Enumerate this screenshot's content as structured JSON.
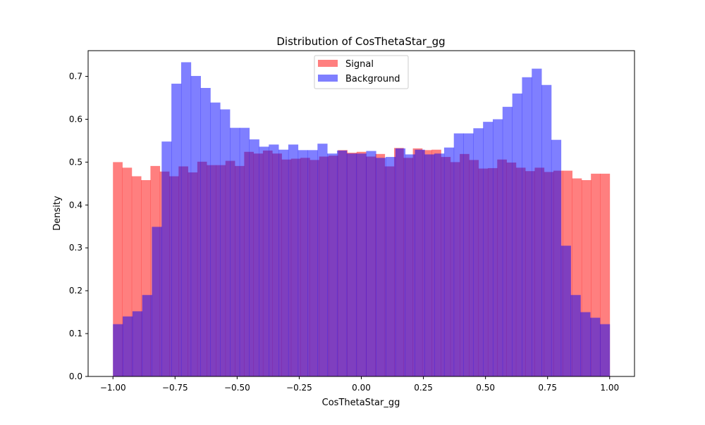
{
  "chart_data": {
    "type": "histogram",
    "title": "Distribution of CosThetaStar_gg",
    "xlabel": "CosThetaStar_gg",
    "ylabel": "Density",
    "xlim": [
      -1.1,
      1.1
    ],
    "ylim": [
      0,
      0.76
    ],
    "xticks": [
      -1.0,
      -0.75,
      -0.5,
      -0.25,
      0.0,
      0.25,
      0.5,
      0.75,
      1.0
    ],
    "xtick_labels": [
      "−1.00",
      "−0.75",
      "−0.50",
      "−0.25",
      "0.00",
      "0.25",
      "0.50",
      "0.75",
      "1.00"
    ],
    "yticks": [
      0.0,
      0.1,
      0.2,
      0.3,
      0.4,
      0.5,
      0.6,
      0.7
    ],
    "ytick_labels": [
      "0.0",
      "0.1",
      "0.2",
      "0.3",
      "0.4",
      "0.5",
      "0.6",
      "0.7"
    ],
    "bin_range": [
      -1.0,
      1.0
    ],
    "legend_position": "upper center",
    "grid": false,
    "series": [
      {
        "name": "Signal",
        "color": "#ff0000",
        "alpha": 0.5,
        "values": [
          0.5,
          0.487,
          0.467,
          0.458,
          0.491,
          0.478,
          0.467,
          0.49,
          0.476,
          0.501,
          0.493,
          0.493,
          0.503,
          0.491,
          0.524,
          0.52,
          0.527,
          0.52,
          0.506,
          0.508,
          0.51,
          0.505,
          0.513,
          0.515,
          0.528,
          0.522,
          0.524,
          0.513,
          0.519,
          0.49,
          0.533,
          0.51,
          0.532,
          0.528,
          0.529,
          0.512,
          0.5,
          0.519,
          0.505,
          0.485,
          0.486,
          0.506,
          0.499,
          0.487,
          0.479,
          0.487,
          0.477,
          0.48,
          0.48,
          0.462,
          0.458,
          0.473,
          0.473
        ]
      },
      {
        "name": "Background",
        "color": "#0000ff",
        "alpha": 0.5,
        "values": [
          0.122,
          0.14,
          0.152,
          0.19,
          0.349,
          0.548,
          0.683,
          0.733,
          0.701,
          0.673,
          0.639,
          0.623,
          0.58,
          0.58,
          0.553,
          0.536,
          0.541,
          0.529,
          0.541,
          0.528,
          0.528,
          0.543,
          0.52,
          0.527,
          0.52,
          0.52,
          0.526,
          0.51,
          0.512,
          0.532,
          0.518,
          0.529,
          0.518,
          0.52,
          0.534,
          0.567,
          0.567,
          0.579,
          0.594,
          0.6,
          0.629,
          0.66,
          0.698,
          0.718,
          0.68,
          0.552,
          0.305,
          0.19,
          0.15,
          0.137,
          0.122
        ]
      }
    ]
  }
}
